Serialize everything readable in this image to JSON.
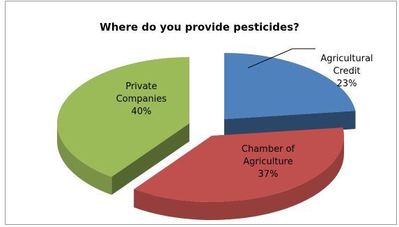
{
  "chart_data": {
    "type": "pie",
    "subtype": "3d-exploded",
    "title": "Where do you provide pesticides?",
    "legend": "none",
    "slices": [
      {
        "label_lines": [
          "Agricultural",
          "Credit"
        ],
        "value": 23,
        "value_label": "23%",
        "color": "#4f81bd"
      },
      {
        "label_lines": [
          "Chamber of",
          "Agriculture"
        ],
        "value": 37,
        "value_label": "37%",
        "color": "#c0504d"
      },
      {
        "label_lines": [
          "Private",
          "Companies"
        ],
        "value": 40,
        "value_label": "40%",
        "color": "#9bbb59"
      }
    ]
  }
}
